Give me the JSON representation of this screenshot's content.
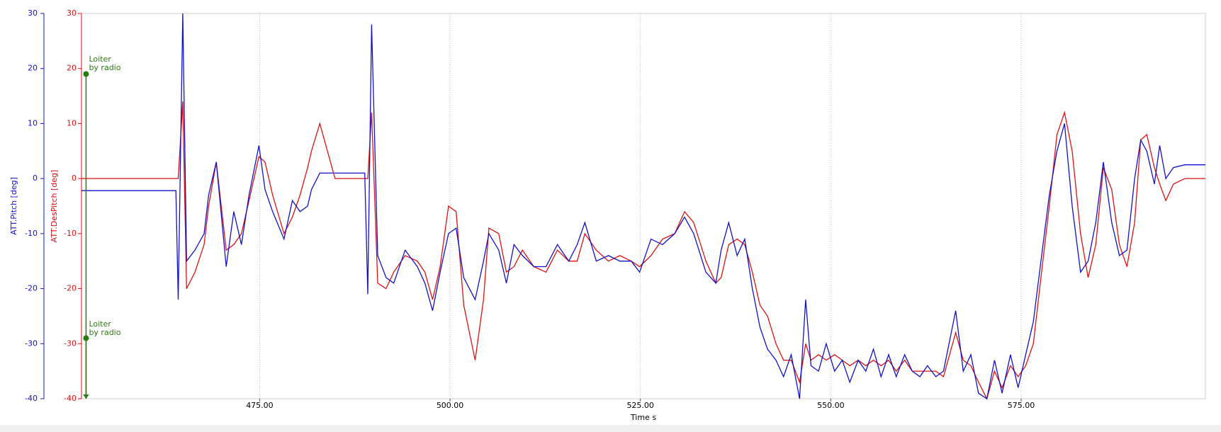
{
  "chart_data": {
    "type": "line",
    "xlabel": "Time s",
    "ylabel": "ATT.Pitch [deg]",
    "y2label": "ATT.DesPitch [deg]",
    "xlim": [
      451.6,
      599.2
    ],
    "ylim": [
      -40,
      30
    ],
    "y2lim": [
      -40,
      30
    ],
    "xticks": [
      {
        "value": 475,
        "label": "475.00"
      },
      {
        "value": 500,
        "label": "500.00"
      },
      {
        "value": 525,
        "label": "525.00"
      },
      {
        "value": 550,
        "label": "550.00"
      },
      {
        "value": 575,
        "label": "575.00"
      }
    ],
    "yticks": [
      -40,
      -30,
      -20,
      -10,
      0,
      10,
      20,
      30
    ],
    "y2ticks": [
      -40,
      -30,
      -20,
      -10,
      0,
      10,
      20,
      30
    ],
    "grid": "x",
    "x": [
      451.6,
      464.0,
      464.3,
      464.9,
      465.4,
      466.5,
      467.7,
      468.3,
      469.3,
      470.6,
      471.6,
      472.6,
      473.6,
      474.9,
      475.7,
      476.7,
      478.2,
      479.3,
      480.3,
      481.3,
      481.8,
      482.9,
      484.9,
      488.8,
      489.2,
      489.7,
      490.5,
      491.6,
      492.6,
      494.1,
      495.7,
      496.7,
      497.7,
      498.7,
      499.8,
      500.8,
      501.8,
      503.3,
      504.4,
      505.1,
      506.4,
      507.4,
      508.4,
      509.5,
      511.0,
      512.6,
      514.1,
      515.6,
      516.7,
      517.7,
      519.2,
      520.8,
      522.3,
      523.8,
      524.9,
      526.4,
      527.9,
      529.5,
      530.8,
      532.0,
      533.6,
      534.9,
      535.6,
      536.6,
      537.7,
      538.7,
      539.7,
      540.7,
      541.7,
      542.8,
      543.8,
      544.8,
      545.9,
      546.7,
      547.4,
      548.4,
      549.4,
      550.5,
      551.5,
      552.5,
      553.6,
      554.6,
      555.6,
      556.6,
      557.6,
      558.6,
      559.7,
      560.7,
      561.7,
      562.7,
      563.8,
      564.8,
      566.4,
      567.4,
      568.4,
      569.4,
      570.5,
      571.5,
      572.5,
      573.6,
      574.6,
      575.6,
      576.6,
      577.6,
      578.7,
      579.7,
      580.7,
      581.7,
      582.8,
      583.8,
      584.8,
      585.8,
      586.9,
      587.9,
      588.9,
      589.9,
      590.7,
      591.5,
      592.5,
      593.2,
      594.0,
      595.0,
      596.5,
      599.2
    ],
    "series": [
      {
        "name": "ATT.DesPitch",
        "color": "#dd1111",
        "axis": "y2",
        "values": [
          0,
          0,
          0,
          14,
          -20,
          -17,
          -12,
          -5,
          3,
          -13,
          -12,
          -10,
          -4,
          4,
          3,
          -3,
          -10,
          -7,
          -3,
          2,
          5,
          10,
          0,
          0,
          0,
          12,
          -19,
          -20,
          -17,
          -14,
          -15,
          -17,
          -22,
          -16,
          -5,
          -6,
          -23,
          -33,
          -22,
          -9,
          -10,
          -17,
          -16,
          -13,
          -16,
          -17,
          -13,
          -15,
          -15,
          -10,
          -13,
          -15,
          -14,
          -15,
          -16,
          -14,
          -11,
          -10,
          -6,
          -8,
          -15,
          -19,
          -18,
          -12,
          -11,
          -12,
          -17,
          -23,
          -25,
          -30,
          -33,
          -33,
          -37,
          -30,
          -33,
          -32,
          -33,
          -32,
          -33,
          -34,
          -33,
          -34,
          -33,
          -34,
          -33,
          -35,
          -33,
          -35,
          -35,
          -35,
          -35,
          -36,
          -28,
          -33,
          -34,
          -37,
          -40,
          -35,
          -38,
          -34,
          -36,
          -34,
          -30,
          -18,
          -5,
          8,
          12,
          5,
          -10,
          -18,
          -12,
          2,
          -2,
          -12,
          -16,
          -8,
          7,
          8,
          2,
          -1,
          -4,
          -1,
          0,
          0
        ]
      },
      {
        "name": "ATT.Pitch",
        "color": "#1111cc",
        "axis": "y",
        "values": [
          -2.2,
          -2.2,
          -22,
          30,
          -15,
          -13,
          -10,
          -3,
          3,
          -16,
          -6,
          -12,
          -3,
          6,
          -2,
          -6,
          -11,
          -4,
          -6,
          -5,
          -2,
          1,
          1,
          1,
          -21,
          28,
          -14,
          -18,
          -19,
          -13,
          -16,
          -19,
          -24,
          -17,
          -10,
          -9,
          -18,
          -22,
          -15,
          -10,
          -13,
          -19,
          -12,
          -14,
          -16,
          -16,
          -12,
          -15,
          -12,
          -8,
          -15,
          -14,
          -15,
          -15,
          -17,
          -11,
          -12,
          -10,
          -7,
          -10,
          -17,
          -19,
          -13,
          -8,
          -14,
          -11,
          -20,
          -27,
          -31,
          -33,
          -36,
          -32,
          -40,
          -22,
          -34,
          -35,
          -30,
          -35,
          -33,
          -37,
          -33,
          -35,
          -31,
          -36,
          -32,
          -36,
          -32,
          -35,
          -36,
          -34,
          -36,
          -35,
          -24,
          -35,
          -32,
          -39,
          -40,
          -33,
          -39,
          -32,
          -38,
          -32,
          -26,
          -15,
          -3,
          5,
          10,
          -5,
          -17,
          -15,
          -8,
          3,
          -8,
          -14,
          -13,
          0,
          7,
          5,
          -1,
          6,
          0,
          2,
          2.5,
          2.5
        ]
      }
    ],
    "annotations": [
      {
        "text": "Loiter by radio",
        "x": 452.2,
        "y": 19,
        "color": "#2a7a10"
      },
      {
        "text": "Loiter by radio",
        "x": 452.2,
        "y": -29,
        "color": "#2a7a10"
      }
    ]
  }
}
